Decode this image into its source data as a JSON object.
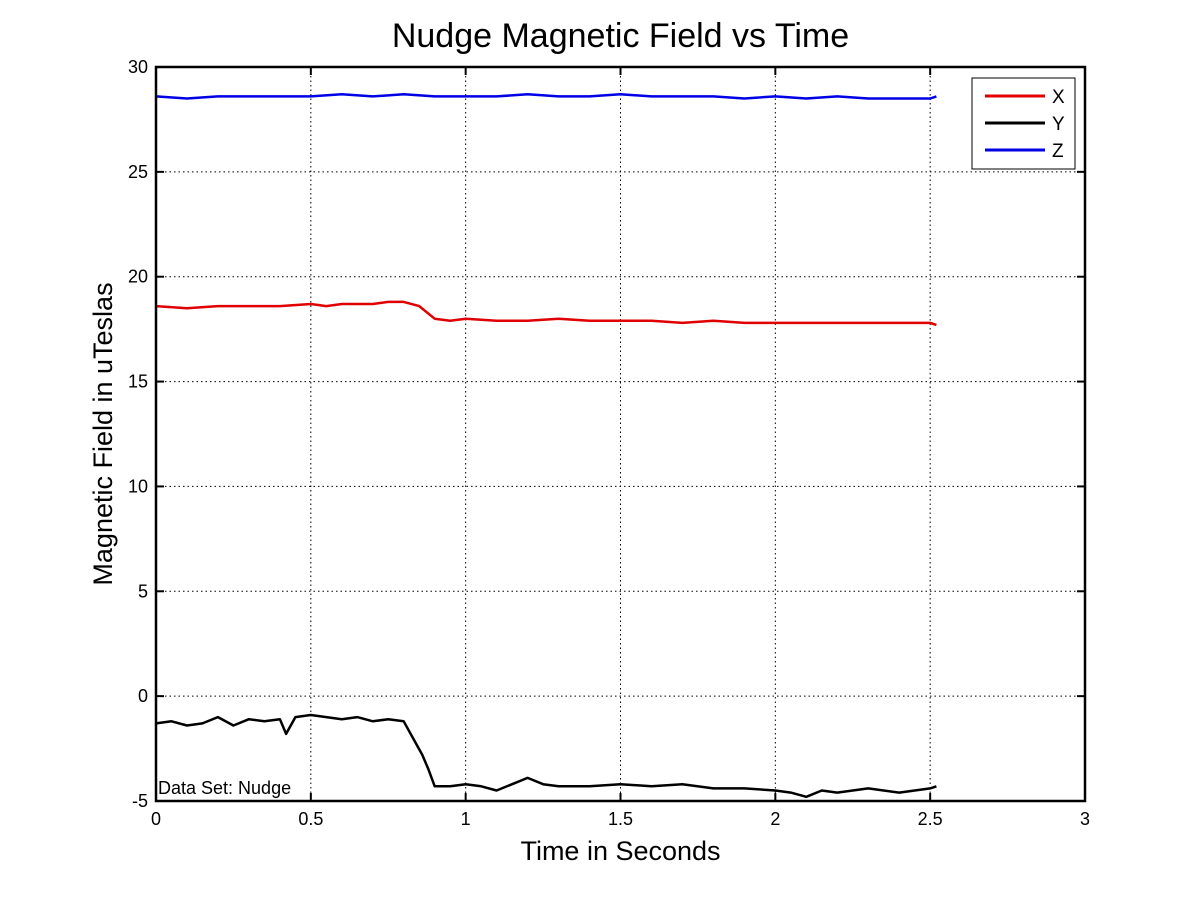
{
  "chart_data": {
    "type": "line",
    "title": "Nudge Magnetic Field vs Time",
    "xlabel": "Time in Seconds",
    "ylabel": "Magnetic Field in uTeslas",
    "xlim": [
      0,
      3
    ],
    "ylim": [
      -5,
      30
    ],
    "xticks": [
      0,
      0.5,
      1,
      1.5,
      2,
      2.5,
      3
    ],
    "xtick_labels": [
      "0",
      "0.5",
      "1",
      "1.5",
      "2",
      "2.5",
      "3"
    ],
    "yticks": [
      -5,
      0,
      5,
      10,
      15,
      20,
      25,
      30
    ],
    "ytick_labels": [
      "-5",
      "0",
      "5",
      "10",
      "15",
      "20",
      "25",
      "30"
    ],
    "grid": true,
    "legend_position": "top-right",
    "annotation": "Data Set: Nudge",
    "series": [
      {
        "name": "X",
        "color": "#e00000",
        "x": [
          0,
          0.1,
          0.2,
          0.3,
          0.4,
          0.5,
          0.55,
          0.6,
          0.7,
          0.75,
          0.8,
          0.85,
          0.9,
          0.95,
          1.0,
          1.1,
          1.2,
          1.3,
          1.4,
          1.5,
          1.6,
          1.7,
          1.8,
          1.9,
          2.0,
          2.1,
          2.2,
          2.3,
          2.4,
          2.5,
          2.52
        ],
        "y": [
          18.6,
          18.5,
          18.6,
          18.6,
          18.6,
          18.7,
          18.6,
          18.7,
          18.7,
          18.8,
          18.8,
          18.6,
          18.0,
          17.9,
          18.0,
          17.9,
          17.9,
          18.0,
          17.9,
          17.9,
          17.9,
          17.8,
          17.9,
          17.8,
          17.8,
          17.8,
          17.8,
          17.8,
          17.8,
          17.8,
          17.7
        ]
      },
      {
        "name": "Y",
        "color": "#000000",
        "x": [
          0,
          0.05,
          0.1,
          0.15,
          0.2,
          0.25,
          0.3,
          0.35,
          0.4,
          0.42,
          0.45,
          0.5,
          0.55,
          0.6,
          0.65,
          0.7,
          0.75,
          0.8,
          0.83,
          0.86,
          0.88,
          0.9,
          0.95,
          1.0,
          1.05,
          1.1,
          1.15,
          1.2,
          1.25,
          1.3,
          1.4,
          1.5,
          1.6,
          1.7,
          1.8,
          1.9,
          2.0,
          2.05,
          2.1,
          2.15,
          2.2,
          2.3,
          2.4,
          2.5,
          2.52
        ],
        "y": [
          -1.3,
          -1.2,
          -1.4,
          -1.3,
          -1.0,
          -1.4,
          -1.1,
          -1.2,
          -1.1,
          -1.8,
          -1.0,
          -0.9,
          -1.0,
          -1.1,
          -1.0,
          -1.2,
          -1.1,
          -1.2,
          -2.0,
          -2.8,
          -3.5,
          -4.3,
          -4.3,
          -4.2,
          -4.3,
          -4.5,
          -4.2,
          -3.9,
          -4.2,
          -4.3,
          -4.3,
          -4.2,
          -4.3,
          -4.2,
          -4.4,
          -4.4,
          -4.5,
          -4.6,
          -4.8,
          -4.5,
          -4.6,
          -4.4,
          -4.6,
          -4.4,
          -4.3
        ]
      },
      {
        "name": "Z",
        "color": "#0000e6",
        "x": [
          0,
          0.1,
          0.2,
          0.3,
          0.4,
          0.5,
          0.6,
          0.7,
          0.8,
          0.9,
          1.0,
          1.1,
          1.2,
          1.3,
          1.4,
          1.5,
          1.6,
          1.7,
          1.8,
          1.9,
          2.0,
          2.1,
          2.2,
          2.3,
          2.4,
          2.5,
          2.52
        ],
        "y": [
          28.6,
          28.5,
          28.6,
          28.6,
          28.6,
          28.6,
          28.7,
          28.6,
          28.7,
          28.6,
          28.6,
          28.6,
          28.7,
          28.6,
          28.6,
          28.7,
          28.6,
          28.6,
          28.6,
          28.5,
          28.6,
          28.5,
          28.6,
          28.5,
          28.5,
          28.5,
          28.6
        ]
      }
    ]
  }
}
